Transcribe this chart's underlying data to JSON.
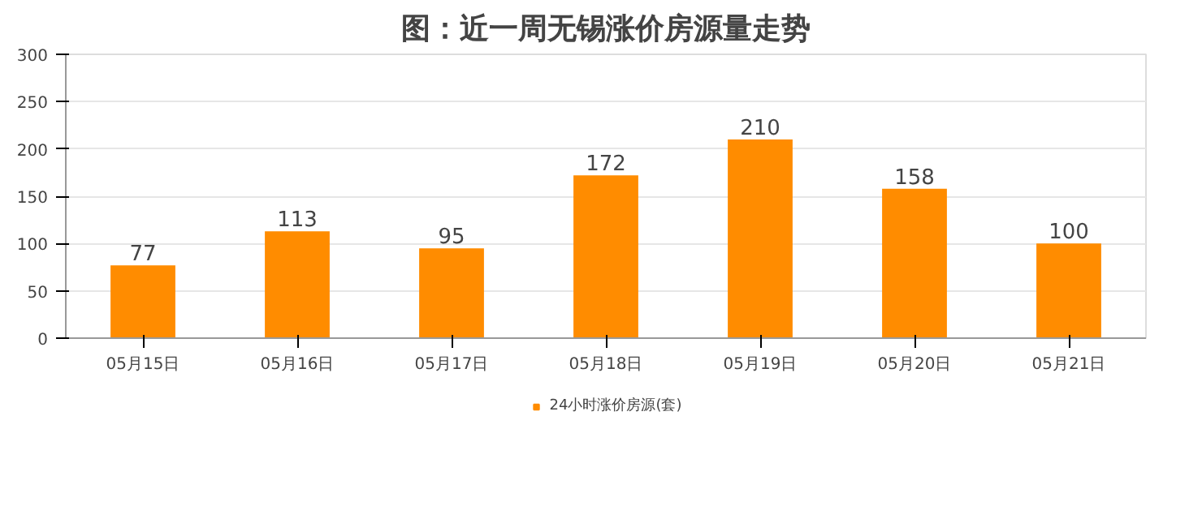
{
  "chart_data": {
    "type": "bar",
    "title": "图：近一周无锡涨价房源量走势",
    "categories": [
      "05月15日",
      "05月16日",
      "05月17日",
      "05月18日",
      "05月19日",
      "05月20日",
      "05月21日"
    ],
    "series": [
      {
        "name": "24小时涨价房源(套)",
        "color": "#ff8c00",
        "values": [
          77,
          113,
          95,
          172,
          210,
          158,
          100
        ]
      }
    ],
    "ylim": [
      0,
      300
    ],
    "yticks": [
      0,
      50,
      100,
      150,
      200,
      250,
      300
    ],
    "grid": "y",
    "legend": "bottom",
    "data_labels": true
  }
}
